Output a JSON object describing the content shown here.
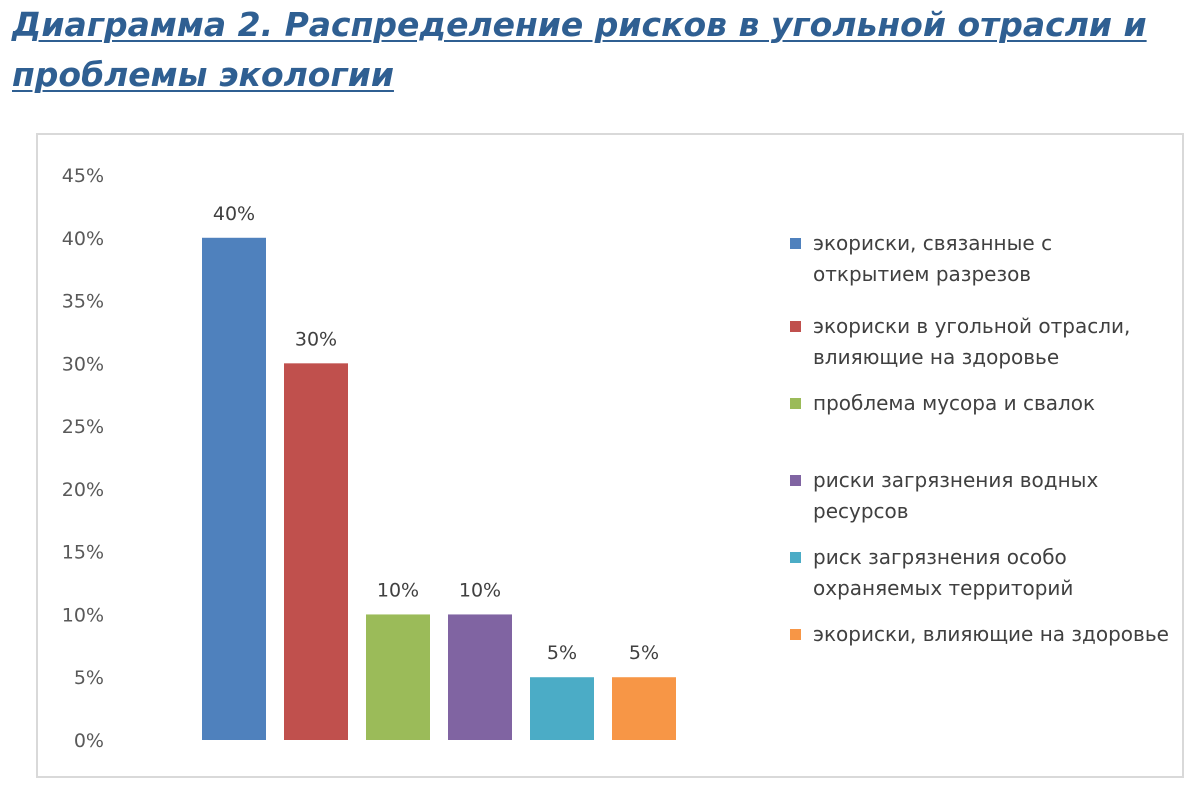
{
  "heading": {
    "line1": "Диаграмма 2. Распределение рисков в угольной отрасли и",
    "line2": "проблемы экологии"
  },
  "chart_data": {
    "type": "bar",
    "title": "",
    "xlabel": "",
    "ylabel": "",
    "ylim": [
      0,
      45
    ],
    "y_ticks": [
      "0%",
      "5%",
      "10%",
      "15%",
      "20%",
      "25%",
      "30%",
      "35%",
      "40%",
      "45%"
    ],
    "grid": false,
    "legend_position": "right",
    "series": [
      {
        "name": "экориски, связанные с открытием разрезов",
        "value": 40,
        "label": "40%",
        "color": "#4f81bd"
      },
      {
        "name": "экориски в угольной отрасли, влияющие на здоровье",
        "value": 30,
        "label": "30%",
        "color": "#c0504d"
      },
      {
        "name": "проблема мусора и свалок",
        "value": 10,
        "label": "10%",
        "color": "#9bbb59"
      },
      {
        "name": "риски загрязнения водных ресурсов",
        "value": 10,
        "label": "10%",
        "color": "#8064a2"
      },
      {
        "name": "риск загрязнения особо охраняемых территорий",
        "value": 5,
        "label": "5%",
        "color": "#4bacc6"
      },
      {
        "name": "экориски, влияющие на здоровье",
        "value": 5,
        "label": "5%",
        "color": "#f79646"
      }
    ]
  }
}
